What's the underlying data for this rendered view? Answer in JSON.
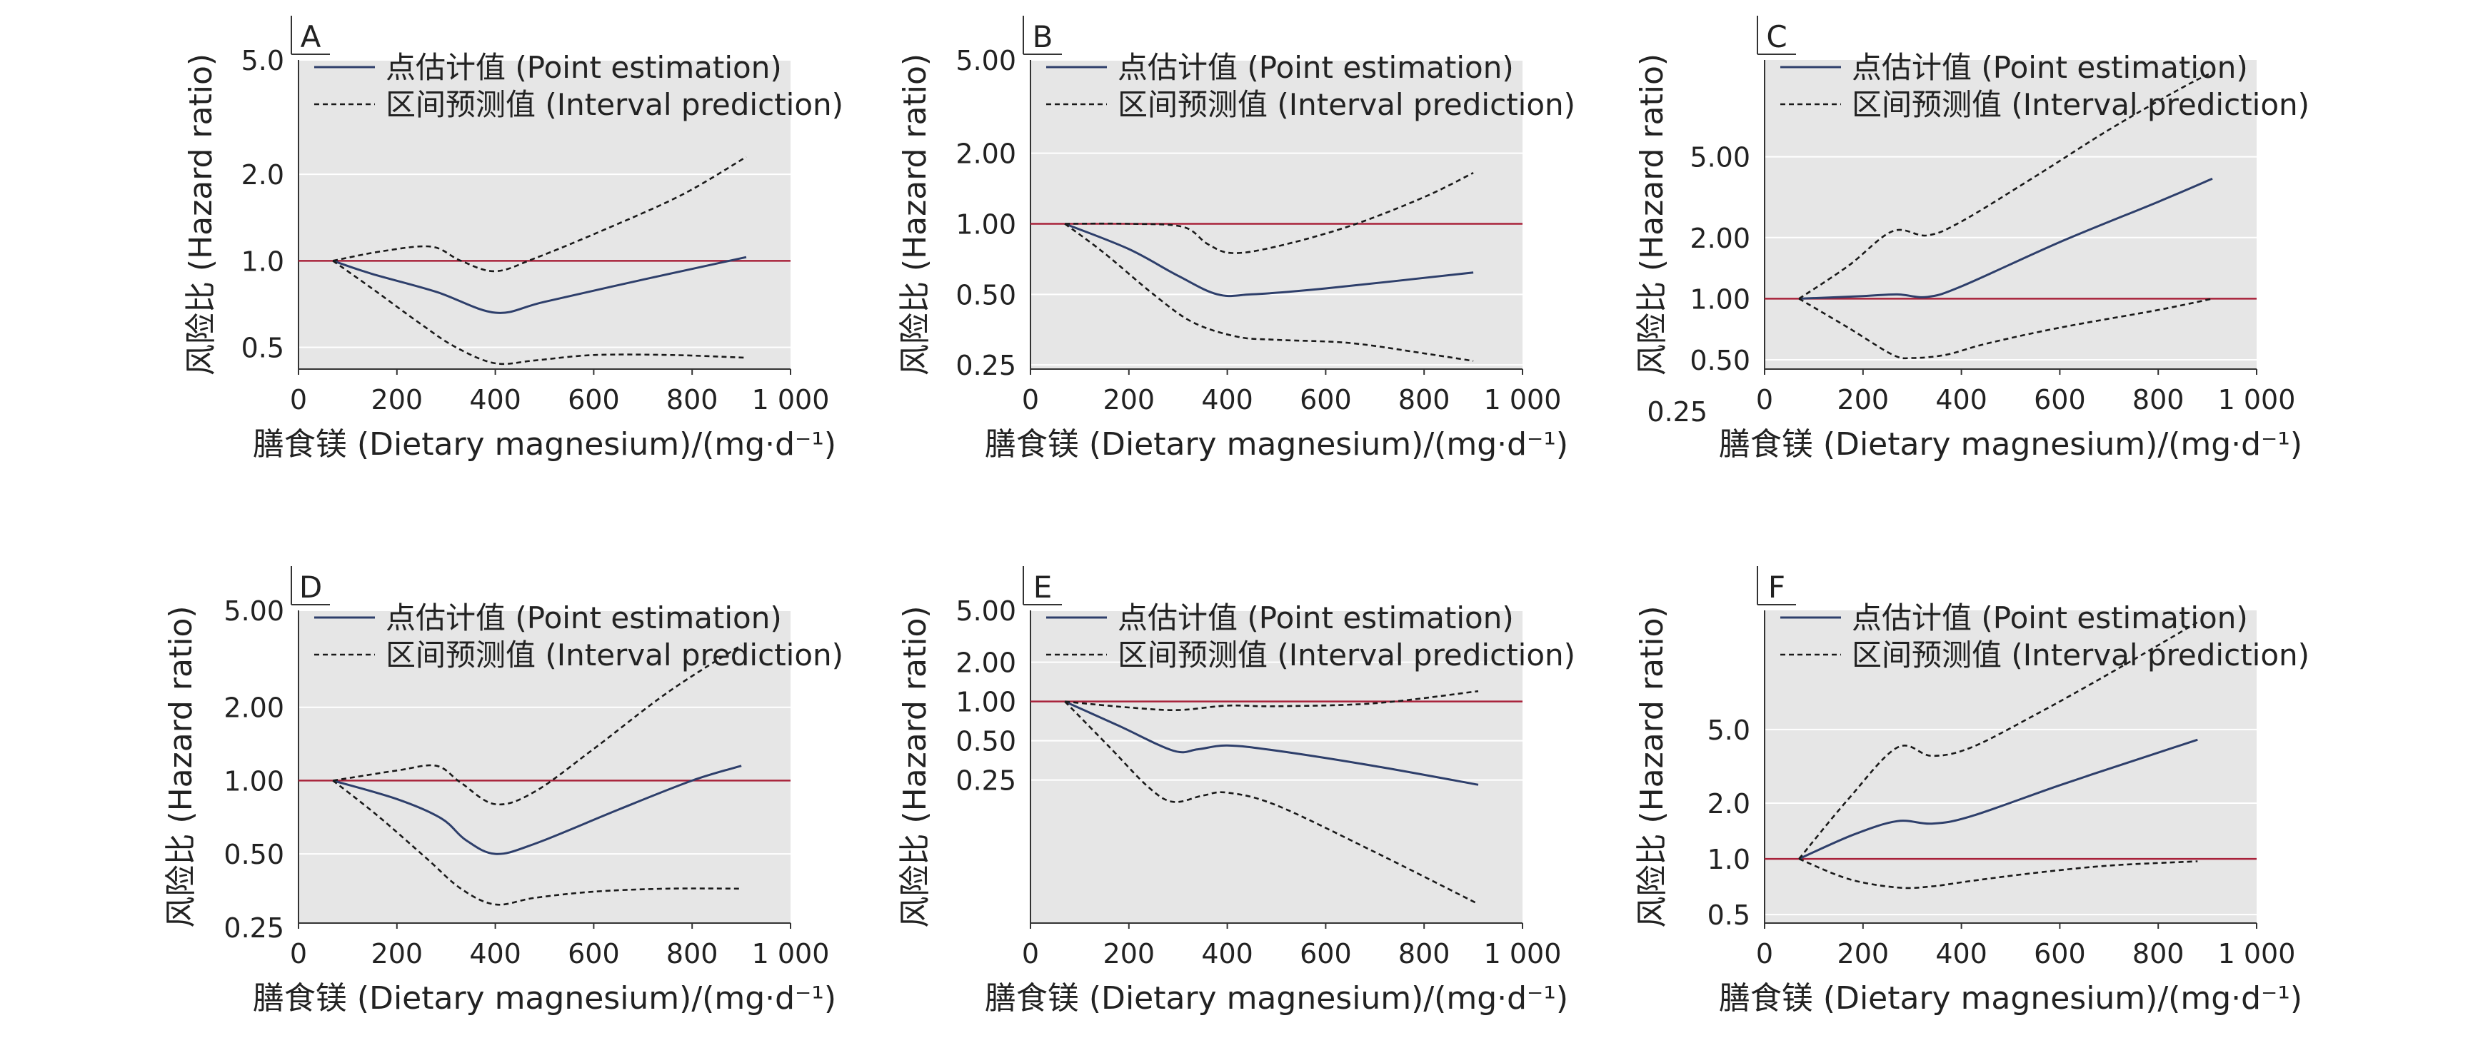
{
  "figure": {
    "legend_point": "点估计值 (Point estimation)",
    "legend_interval": "区间预测值 (Interval prediction)",
    "colors": {
      "background": "#e6e6e6",
      "grid": "#ffffff",
      "point_line": "#2e3f6b",
      "interval_line": "#1a1a1a",
      "reference_line": "#a8223a"
    }
  },
  "chart_data": [
    {
      "panel": "A",
      "type": "line",
      "xlabel": "膳食镁 (Dietary magnesium)/(mg·d⁻¹)",
      "ylabel": "风险比 (Hazard ratio)",
      "y_scale": "log",
      "xlim": [
        0,
        1000
      ],
      "ylim": [
        0.42,
        5.0
      ],
      "xticks": [
        0,
        200,
        400,
        600,
        800,
        1000
      ],
      "xtick_labels": [
        "0",
        "200",
        "400",
        "600",
        "800",
        "1 000"
      ],
      "yticks": [
        0.5,
        1.0,
        2.0,
        5.0
      ],
      "ytick_labels": [
        "0.5",
        "1.0",
        "2.0",
        "5.0"
      ],
      "reference": 1.0,
      "grid": true,
      "legend": "top-left",
      "series": [
        {
          "name": "点估计值 (Point estimation)",
          "style": "solid",
          "x": [
            70,
            150,
            280,
            400,
            500,
            700,
            910
          ],
          "y": [
            1.0,
            0.9,
            0.78,
            0.66,
            0.72,
            0.86,
            1.03
          ]
        },
        {
          "name": "区间预测值 (Interval prediction)",
          "style": "dashed",
          "x": [
            70,
            170,
            270,
            330,
            400,
            480,
            620,
            780,
            910
          ],
          "y": [
            1.0,
            1.08,
            1.12,
            1.0,
            0.92,
            1.02,
            1.28,
            1.7,
            2.3
          ]
        },
        {
          "name": "",
          "style": "dashed",
          "x": [
            70,
            150,
            250,
            320,
            400,
            480,
            600,
            760,
            910
          ],
          "y": [
            1.0,
            0.8,
            0.6,
            0.5,
            0.44,
            0.45,
            0.47,
            0.47,
            0.46
          ]
        }
      ]
    },
    {
      "panel": "B",
      "type": "line",
      "xlabel": "膳食镁 (Dietary magnesium)/(mg·d⁻¹)",
      "ylabel": "风险比 (Hazard ratio)",
      "y_scale": "log",
      "xlim": [
        0,
        1000
      ],
      "ylim": [
        0.24,
        5.0
      ],
      "xticks": [
        0,
        200,
        400,
        600,
        800,
        1000
      ],
      "xtick_labels": [
        "0",
        "200",
        "400",
        "600",
        "800",
        "1 000"
      ],
      "yticks": [
        0.25,
        0.5,
        1.0,
        2.0,
        5.0
      ],
      "ytick_labels": [
        "0.25",
        "0.50",
        "1.00",
        "2.00",
        "5.00"
      ],
      "reference": 1.0,
      "grid": true,
      "legend": "top-left",
      "series": [
        {
          "name": "点估计值 (Point estimation)",
          "style": "solid",
          "x": [
            70,
            200,
            300,
            380,
            450,
            600,
            900
          ],
          "y": [
            1.0,
            0.78,
            0.6,
            0.5,
            0.5,
            0.53,
            0.62
          ]
        },
        {
          "name": "区间预测值 (Interval prediction)",
          "style": "dashed",
          "x": [
            70,
            200,
            310,
            360,
            410,
            500,
            650,
            800,
            900
          ],
          "y": [
            1.0,
            1.0,
            0.97,
            0.82,
            0.75,
            0.8,
            0.98,
            1.3,
            1.65
          ]
        },
        {
          "name": "",
          "style": "dashed",
          "x": [
            70,
            150,
            250,
            330,
            420,
            500,
            650,
            800,
            900
          ],
          "y": [
            1.0,
            0.75,
            0.5,
            0.38,
            0.33,
            0.32,
            0.31,
            0.28,
            0.26
          ]
        }
      ]
    },
    {
      "panel": "C",
      "type": "line",
      "xlabel": "膳食镁 (Dietary magnesium)/(mg·d⁻¹)",
      "ylabel": "风险比 (Hazard ratio)",
      "y_scale": "log",
      "xlim": [
        0,
        1000
      ],
      "ylim": [
        0.45,
        15.0
      ],
      "xticks": [
        0,
        200,
        400,
        600,
        800,
        1000
      ],
      "xtick_labels": [
        "0",
        "200",
        "400",
        "600",
        "800",
        "1 000"
      ],
      "yticks": [
        0.5,
        1.0,
        2.0,
        5.0
      ],
      "ytick_labels": [
        "0.50",
        "1.00",
        "2.00",
        "5.00"
      ],
      "extra_tick_label": "0.25",
      "reference": 1.0,
      "grid": true,
      "legend": "top-left",
      "series": [
        {
          "name": "点估计值 (Point estimation)",
          "style": "solid",
          "x": [
            70,
            200,
            270,
            330,
            400,
            600,
            800,
            910
          ],
          "y": [
            1.0,
            1.03,
            1.05,
            1.02,
            1.15,
            1.9,
            3.0,
            3.9
          ]
        },
        {
          "name": "区间预测值 (Interval prediction)",
          "style": "dashed",
          "x": [
            70,
            170,
            260,
            330,
            400,
            550,
            700,
            850,
            910
          ],
          "y": [
            1.0,
            1.45,
            2.15,
            2.05,
            2.4,
            4.0,
            6.8,
            11.0,
            13.0
          ]
        },
        {
          "name": "",
          "style": "dashed",
          "x": [
            70,
            170,
            260,
            300,
            370,
            450,
            600,
            800,
            910
          ],
          "y": [
            1.0,
            0.72,
            0.53,
            0.51,
            0.53,
            0.6,
            0.72,
            0.88,
            1.0
          ]
        }
      ]
    },
    {
      "panel": "D",
      "type": "line",
      "xlabel": "膳食镁 (Dietary magnesium)/(mg·d⁻¹)",
      "ylabel": "风险比 (Hazard ratio)",
      "y_scale": "log",
      "xlim": [
        0,
        1000
      ],
      "ylim": [
        0.26,
        5.0
      ],
      "xticks": [
        0,
        200,
        400,
        600,
        800,
        1000
      ],
      "xtick_labels": [
        "0",
        "200",
        "400",
        "600",
        "800",
        "1 000"
      ],
      "yticks": [
        0.25,
        0.5,
        1.0,
        2.0,
        5.0
      ],
      "ytick_labels": [
        "0.25",
        "0.50",
        "1.00",
        "2.00",
        "5.00"
      ],
      "reference": 1.0,
      "grid": true,
      "legend": "top-left",
      "series": [
        {
          "name": "点估计值 (Point estimation)",
          "style": "solid",
          "x": [
            70,
            200,
            290,
            340,
            400,
            480,
            650,
            800,
            900
          ],
          "y": [
            1.0,
            0.84,
            0.7,
            0.57,
            0.5,
            0.55,
            0.76,
            1.0,
            1.15
          ]
        },
        {
          "name": "区间预测值 (Interval prediction)",
          "style": "dashed",
          "x": [
            70,
            200,
            280,
            330,
            400,
            480,
            600,
            750,
            900
          ],
          "y": [
            1.0,
            1.1,
            1.15,
            0.98,
            0.8,
            0.9,
            1.35,
            2.3,
            3.6
          ]
        },
        {
          "name": "",
          "style": "dashed",
          "x": [
            70,
            160,
            260,
            330,
            400,
            480,
            600,
            750,
            900
          ],
          "y": [
            1.0,
            0.72,
            0.48,
            0.36,
            0.31,
            0.33,
            0.35,
            0.36,
            0.36
          ]
        }
      ]
    },
    {
      "panel": "E",
      "type": "line",
      "xlabel": "膳食镁 (Dietary magnesium)/(mg·d⁻¹)",
      "ylabel": "风险比 (Hazard ratio)",
      "y_scale": "log",
      "xlim": [
        0,
        1000
      ],
      "ylim": [
        0.02,
        5.0
      ],
      "xticks": [
        0,
        200,
        400,
        600,
        800,
        1000
      ],
      "xtick_labels": [
        "0",
        "200",
        "400",
        "600",
        "800",
        "1 000"
      ],
      "yticks": [
        0.25,
        0.5,
        1.0,
        2.0,
        5.0
      ],
      "ytick_labels": [
        "0.25",
        "0.50",
        "1.00",
        "2.00",
        "5.00"
      ],
      "reference": 1.0,
      "grid": true,
      "legend": "top-left",
      "series": [
        {
          "name": "点估计值 (Point estimation)",
          "style": "solid",
          "x": [
            70,
            180,
            290,
            340,
            400,
            500,
            700,
            910
          ],
          "y": [
            1.0,
            0.65,
            0.42,
            0.43,
            0.46,
            0.42,
            0.32,
            0.23
          ]
        },
        {
          "name": "区间预测值 (Interval prediction)",
          "style": "dashed",
          "x": [
            70,
            200,
            300,
            400,
            500,
            700,
            910
          ],
          "y": [
            1.0,
            0.9,
            0.86,
            0.93,
            0.92,
            0.97,
            1.2
          ]
        },
        {
          "name": "",
          "style": "dashed",
          "x": [
            70,
            160,
            240,
            290,
            350,
            400,
            500,
            700,
            910
          ],
          "y": [
            1.0,
            0.45,
            0.22,
            0.17,
            0.19,
            0.2,
            0.16,
            0.07,
            0.028
          ]
        }
      ]
    },
    {
      "panel": "F",
      "type": "line",
      "xlabel": "膳食镁 (Dietary magnesium)/(mg·d⁻¹)",
      "ylabel": "风险比 (Hazard ratio)",
      "y_scale": "log",
      "xlim": [
        0,
        1000
      ],
      "ylim": [
        0.45,
        22.0
      ],
      "xticks": [
        0,
        200,
        400,
        600,
        800,
        1000
      ],
      "xtick_labels": [
        "0",
        "200",
        "400",
        "600",
        "800",
        "1 000"
      ],
      "yticks": [
        0.5,
        1.0,
        2.0,
        5.0
      ],
      "ytick_labels": [
        "0.5",
        "1.0",
        "2.0",
        "5.0"
      ],
      "reference": 1.0,
      "grid": true,
      "legend": "top-left",
      "series": [
        {
          "name": "点估计值 (Point estimation)",
          "style": "solid",
          "x": [
            70,
            180,
            270,
            340,
            420,
            600,
            780,
            880
          ],
          "y": [
            1.0,
            1.35,
            1.6,
            1.55,
            1.7,
            2.5,
            3.6,
            4.4
          ]
        },
        {
          "name": "区间预测值 (Interval prediction)",
          "style": "dashed",
          "x": [
            70,
            170,
            270,
            340,
            420,
            550,
            700,
            880
          ],
          "y": [
            1.0,
            2.1,
            4.0,
            3.6,
            4.0,
            6.0,
            10.0,
            19.0
          ]
        },
        {
          "name": "",
          "style": "dashed",
          "x": [
            70,
            170,
            270,
            340,
            420,
            550,
            700,
            880
          ],
          "y": [
            1.0,
            0.78,
            0.7,
            0.71,
            0.76,
            0.84,
            0.92,
            0.97
          ]
        }
      ]
    }
  ]
}
